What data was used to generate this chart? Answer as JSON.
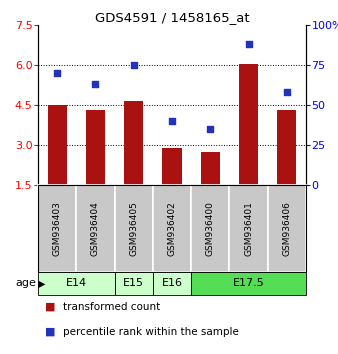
{
  "title": "GDS4591 / 1458165_at",
  "samples": [
    "GSM936403",
    "GSM936404",
    "GSM936405",
    "GSM936402",
    "GSM936400",
    "GSM936401",
    "GSM936406"
  ],
  "bar_values": [
    4.5,
    4.3,
    4.65,
    2.9,
    2.72,
    6.02,
    4.3
  ],
  "dot_values": [
    70,
    63,
    75,
    40,
    35,
    88,
    58
  ],
  "bar_color": "#aa1111",
  "dot_color": "#2233bb",
  "bar_bottom": 1.5,
  "ylim": [
    1.5,
    7.5
  ],
  "yticks": [
    1.5,
    3.0,
    4.5,
    6.0,
    7.5
  ],
  "right_ylim": [
    0,
    100
  ],
  "right_yticks": [
    0,
    25,
    50,
    75,
    100
  ],
  "right_yticklabels": [
    "0",
    "25",
    "50",
    "75",
    "100%"
  ],
  "groups": [
    {
      "label": "E14",
      "samples": [
        "GSM936403",
        "GSM936404"
      ],
      "color": "#ccffcc"
    },
    {
      "label": "E15",
      "samples": [
        "GSM936405"
      ],
      "color": "#ccffcc"
    },
    {
      "label": "E16",
      "samples": [
        "GSM936402"
      ],
      "color": "#ccffcc"
    },
    {
      "label": "E17.5",
      "samples": [
        "GSM936400",
        "GSM936401",
        "GSM936406"
      ],
      "color": "#55dd55"
    }
  ],
  "age_label": "age",
  "legend_bar_label": "transformed count",
  "legend_dot_label": "percentile rank within the sample",
  "sample_bg_color": "#c8c8c8",
  "bar_width": 0.5
}
